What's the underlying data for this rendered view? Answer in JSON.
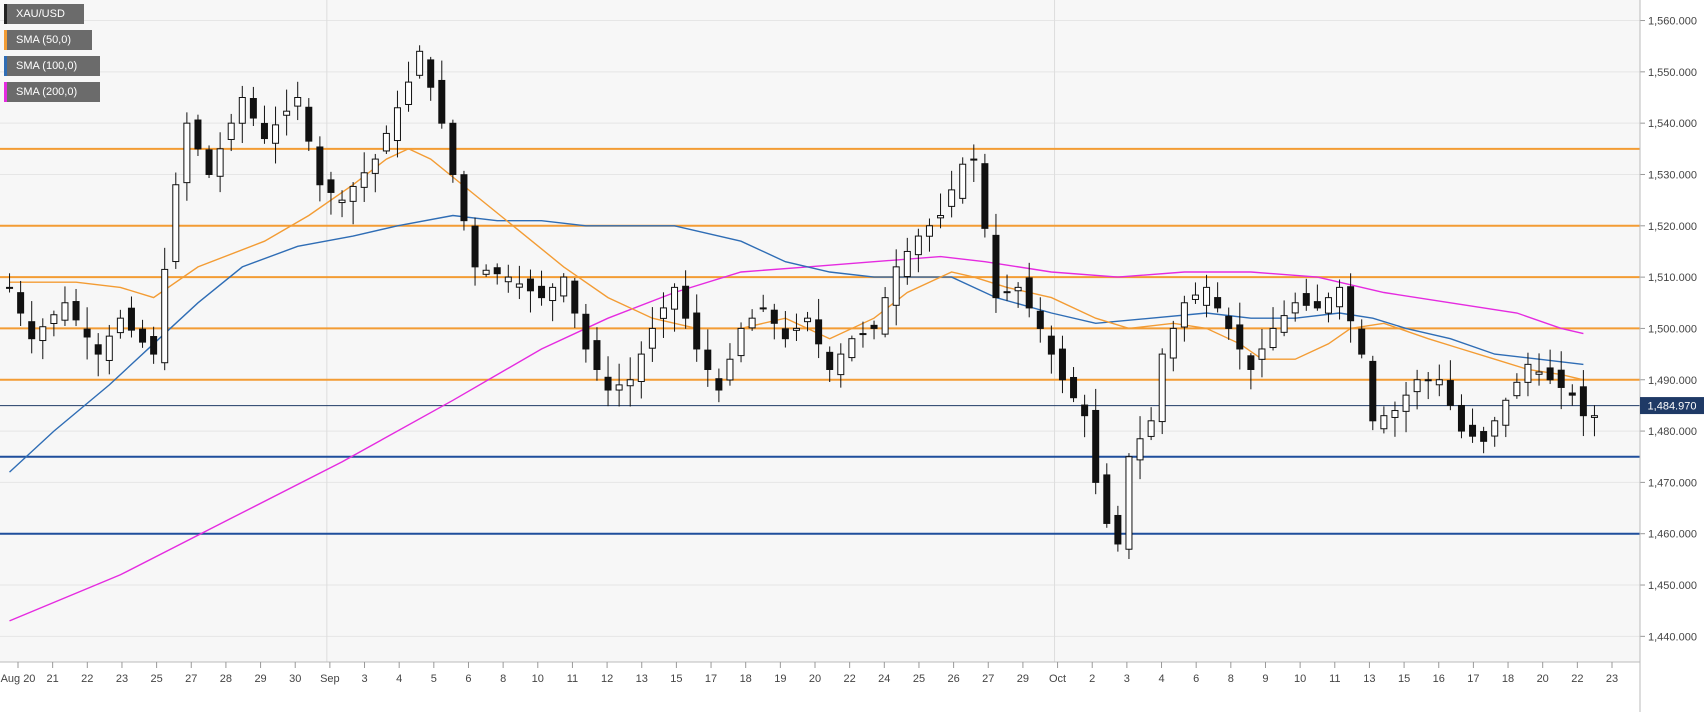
{
  "legend": [
    {
      "label": "XAU/USD",
      "color": "#222222"
    },
    {
      "label": "SMA (50,0)",
      "color": "#f39c34"
    },
    {
      "label": "SMA (100,0)",
      "color": "#2f6db5"
    },
    {
      "label": "SMA (200,0)",
      "color": "#e52be0"
    }
  ],
  "last_price_label": "1,484.970",
  "chart_data": {
    "type": "candlestick",
    "symbol": "XAU/USD",
    "ylim": [
      1435,
      1564
    ],
    "y_ticks": [
      1440,
      1450,
      1460,
      1470,
      1480,
      1490,
      1500,
      1510,
      1520,
      1530,
      1540,
      1550,
      1560
    ],
    "y_tick_labels": [
      "1,440.000",
      "1,450.000",
      "1,460.000",
      "1,470.000",
      "1,480.000",
      "1,490.000",
      "1,500.000",
      "1,510.000",
      "1,520.000",
      "1,530.000",
      "1,540.000",
      "1,550.000",
      "1,560.000"
    ],
    "x_tick_labels": [
      "Aug 20",
      "21",
      "22",
      "23",
      "25",
      "27",
      "28",
      "29",
      "30",
      "Sep",
      "3",
      "4",
      "5",
      "6",
      "8",
      "10",
      "11",
      "12",
      "13",
      "15",
      "17",
      "18",
      "19",
      "20",
      "22",
      "24",
      "25",
      "26",
      "27",
      "29",
      "Oct",
      "2",
      "3",
      "4",
      "6",
      "8",
      "9",
      "10",
      "11",
      "13",
      "15",
      "16",
      "17",
      "18",
      "20",
      "22",
      "23"
    ],
    "horizontal_levels": [
      {
        "value": 1535,
        "color": "#f39c34"
      },
      {
        "value": 1520,
        "color": "#f39c34"
      },
      {
        "value": 1510,
        "color": "#f39c34"
      },
      {
        "value": 1500,
        "color": "#f39c34"
      },
      {
        "value": 1490,
        "color": "#f39c34"
      },
      {
        "value": 1475,
        "color": "#1f4e9c"
      },
      {
        "value": 1460,
        "color": "#1f4e9c"
      }
    ],
    "last_price": 1484.97,
    "price_path": [
      [
        0,
        1508
      ],
      [
        2,
        1498
      ],
      [
        5,
        1505
      ],
      [
        8,
        1495
      ],
      [
        10,
        1502
      ],
      [
        13,
        1495
      ],
      [
        15,
        1528
      ],
      [
        16,
        1540
      ],
      [
        18,
        1530
      ],
      [
        21,
        1545
      ],
      [
        23,
        1537
      ],
      [
        26,
        1545
      ],
      [
        28,
        1528
      ],
      [
        30,
        1525
      ],
      [
        33,
        1533
      ],
      [
        36,
        1548
      ],
      [
        37,
        1554
      ],
      [
        39,
        1540
      ],
      [
        40,
        1530
      ],
      [
        42,
        1512
      ],
      [
        45,
        1510
      ],
      [
        48,
        1506
      ],
      [
        50,
        1510
      ],
      [
        52,
        1496
      ],
      [
        54,
        1488
      ],
      [
        56,
        1490
      ],
      [
        58,
        1500
      ],
      [
        60,
        1508
      ],
      [
        62,
        1496
      ],
      [
        64,
        1488
      ],
      [
        66,
        1500
      ],
      [
        68,
        1504
      ],
      [
        70,
        1498
      ],
      [
        72,
        1502
      ],
      [
        74,
        1492
      ],
      [
        76,
        1498
      ],
      [
        78,
        1500
      ],
      [
        80,
        1512
      ],
      [
        82,
        1518
      ],
      [
        84,
        1522
      ],
      [
        86,
        1532
      ],
      [
        87,
        1533
      ],
      [
        89,
        1506
      ],
      [
        91,
        1508
      ],
      [
        93,
        1500
      ],
      [
        95,
        1490
      ],
      [
        97,
        1483
      ],
      [
        98,
        1470
      ],
      [
        99,
        1462
      ],
      [
        100,
        1458
      ],
      [
        101,
        1475
      ],
      [
        103,
        1482
      ],
      [
        104,
        1495
      ],
      [
        106,
        1505
      ],
      [
        108,
        1508
      ],
      [
        110,
        1500
      ],
      [
        112,
        1492
      ],
      [
        114,
        1500
      ],
      [
        116,
        1505
      ],
      [
        118,
        1504
      ],
      [
        120,
        1508
      ],
      [
        122,
        1495
      ],
      [
        123,
        1482
      ],
      [
        125,
        1484
      ],
      [
        127,
        1490
      ],
      [
        129,
        1490
      ],
      [
        131,
        1480
      ],
      [
        133,
        1478
      ],
      [
        135,
        1486
      ],
      [
        137,
        1493
      ],
      [
        139,
        1490
      ],
      [
        141,
        1487
      ],
      [
        142,
        1483
      ]
    ],
    "sma_50": [
      [
        0,
        1509
      ],
      [
        6,
        1509
      ],
      [
        10,
        1508
      ],
      [
        13,
        1506
      ],
      [
        17,
        1512
      ],
      [
        23,
        1517
      ],
      [
        27,
        1522
      ],
      [
        31,
        1528
      ],
      [
        34,
        1533
      ],
      [
        36,
        1535
      ],
      [
        38,
        1533
      ],
      [
        42,
        1526
      ],
      [
        46,
        1519
      ],
      [
        50,
        1512
      ],
      [
        54,
        1506
      ],
      [
        58,
        1502
      ],
      [
        62,
        1500
      ],
      [
        66,
        1500
      ],
      [
        70,
        1502
      ],
      [
        74,
        1498
      ],
      [
        78,
        1502
      ],
      [
        81,
        1507
      ],
      [
        85,
        1511
      ],
      [
        87,
        1510
      ],
      [
        90,
        1508
      ],
      [
        94,
        1506
      ],
      [
        98,
        1502
      ],
      [
        101,
        1500
      ],
      [
        105,
        1501
      ],
      [
        108,
        1500
      ],
      [
        111,
        1497
      ],
      [
        113,
        1494
      ],
      [
        116,
        1494
      ],
      [
        119,
        1497
      ],
      [
        121,
        1500
      ],
      [
        124,
        1501
      ],
      [
        128,
        1498
      ],
      [
        131,
        1496
      ],
      [
        134,
        1494
      ],
      [
        137,
        1492
      ],
      [
        140,
        1491
      ],
      [
        142,
        1490
      ]
    ],
    "sma_100": [
      [
        0,
        1472
      ],
      [
        4,
        1480
      ],
      [
        9,
        1489
      ],
      [
        13,
        1497
      ],
      [
        17,
        1505
      ],
      [
        21,
        1512
      ],
      [
        26,
        1516
      ],
      [
        31,
        1518
      ],
      [
        35,
        1520
      ],
      [
        40,
        1522
      ],
      [
        44,
        1521
      ],
      [
        48,
        1521
      ],
      [
        52,
        1520
      ],
      [
        56,
        1520
      ],
      [
        60,
        1520
      ],
      [
        66,
        1517
      ],
      [
        70,
        1513
      ],
      [
        74,
        1511
      ],
      [
        78,
        1510
      ],
      [
        85,
        1510
      ],
      [
        89,
        1506
      ],
      [
        94,
        1503
      ],
      [
        98,
        1501
      ],
      [
        103,
        1502
      ],
      [
        108,
        1503
      ],
      [
        112,
        1502
      ],
      [
        116,
        1502
      ],
      [
        120,
        1503
      ],
      [
        123,
        1502
      ],
      [
        126,
        1500
      ],
      [
        130,
        1498
      ],
      [
        134,
        1495
      ],
      [
        138,
        1494
      ],
      [
        142,
        1493
      ]
    ],
    "sma_200": [
      [
        0,
        1443
      ],
      [
        10,
        1452
      ],
      [
        20,
        1463
      ],
      [
        30,
        1474
      ],
      [
        40,
        1486
      ],
      [
        48,
        1496
      ],
      [
        54,
        1502
      ],
      [
        60,
        1507
      ],
      [
        66,
        1511
      ],
      [
        72,
        1512
      ],
      [
        78,
        1513
      ],
      [
        84,
        1514
      ],
      [
        88,
        1513
      ],
      [
        94,
        1511
      ],
      [
        100,
        1510
      ],
      [
        106,
        1511
      ],
      [
        112,
        1511
      ],
      [
        118,
        1510
      ],
      [
        124,
        1507
      ],
      [
        130,
        1505
      ],
      [
        136,
        1503
      ],
      [
        140,
        1500
      ],
      [
        142,
        1499
      ]
    ]
  }
}
